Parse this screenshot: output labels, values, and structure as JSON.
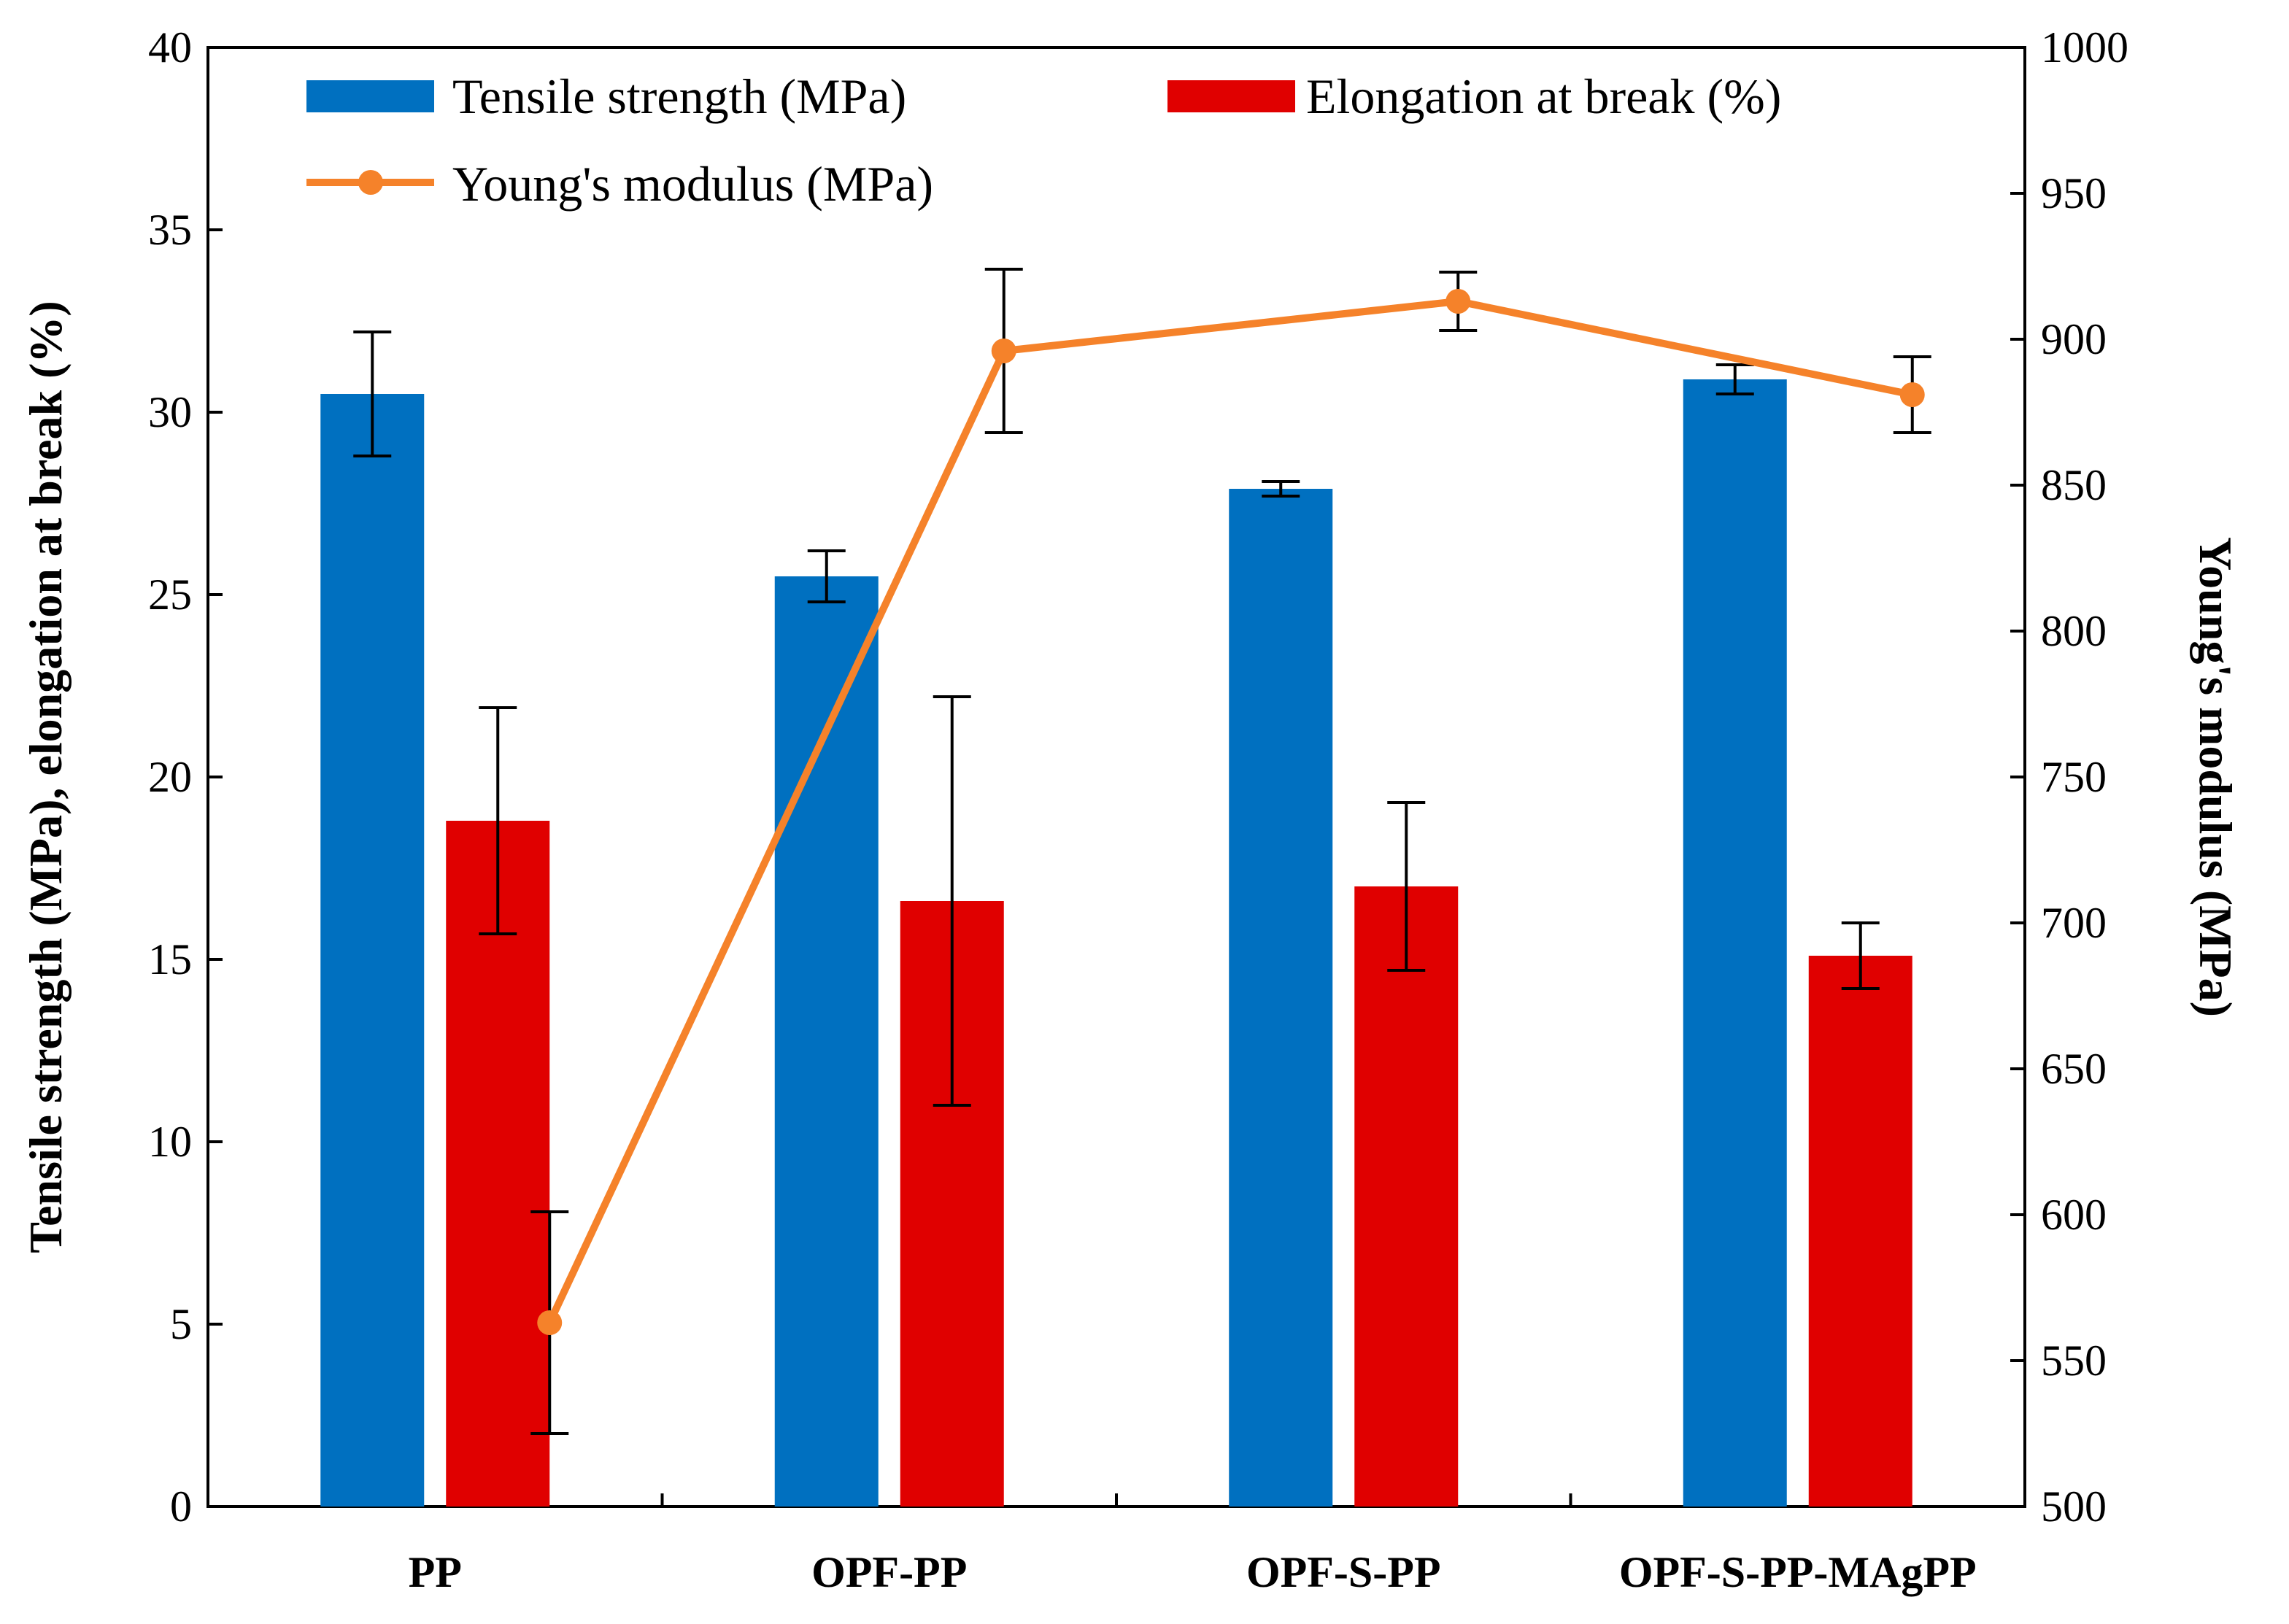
{
  "chart_data": {
    "type": "bar",
    "categories": [
      "PP",
      "OPF-PP",
      "OPF-S-PP",
      "OPF-S-PP-MAgPP"
    ],
    "series": [
      {
        "name": "Tensile strength (MPa)",
        "kind": "bar",
        "axis": "left",
        "color": "#0070C0",
        "values": [
          30.5,
          25.5,
          27.9,
          30.9
        ],
        "errors": [
          1.7,
          0.7,
          0.2,
          0.4
        ]
      },
      {
        "name": "Elongation at break (%)",
        "kind": "bar",
        "axis": "left",
        "color": "#E00000",
        "values": [
          18.8,
          16.6,
          17.0,
          15.1
        ],
        "errors": [
          3.1,
          5.6,
          2.3,
          0.9
        ]
      },
      {
        "name": "Young's modulus (MPa)",
        "kind": "line",
        "axis": "right",
        "color": "#F5822A",
        "values": [
          563,
          896,
          913,
          881
        ],
        "errors": [
          38,
          28,
          10,
          13
        ]
      }
    ],
    "ylabel": "Tensile strength (MPa), elongation at break (%)",
    "y2label": "Young's modulus (MPa)",
    "ylim": [
      0,
      40
    ],
    "y2lim": [
      500,
      1000
    ],
    "yticks": [
      0,
      5,
      10,
      15,
      20,
      25,
      30,
      35,
      40
    ],
    "y2ticks": [
      500,
      550,
      600,
      650,
      700,
      750,
      800,
      850,
      900,
      950,
      1000
    ],
    "legend": {
      "position": "top",
      "entries": [
        "Tensile strength (MPa)",
        "Elongation at break (%)",
        "Young's modulus (MPa)"
      ]
    },
    "grid": false
  }
}
